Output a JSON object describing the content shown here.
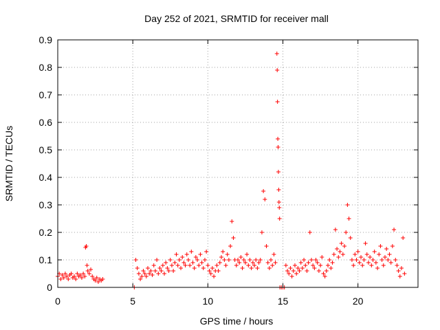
{
  "chart_data": {
    "type": "scatter",
    "title": "Day 252 of 2021, SRMTID for receiver mall",
    "xlabel": "GPS time / hours",
    "ylabel": "SRMTID / TECUs",
    "xlim": [
      0,
      24
    ],
    "ylim": [
      0,
      0.9
    ],
    "xticks": [
      0,
      5,
      10,
      15,
      20
    ],
    "yticks": [
      0,
      0.1,
      0.2,
      0.3,
      0.4,
      0.5,
      0.6,
      0.7,
      0.8,
      0.9
    ],
    "grid": true,
    "marker": "+",
    "color": "#ff0000",
    "series": [
      {
        "name": "SRMTID",
        "points": [
          [
            0.0,
            0.04
          ],
          [
            0.1,
            0.05
          ],
          [
            0.2,
            0.03
          ],
          [
            0.3,
            0.045
          ],
          [
            0.4,
            0.035
          ],
          [
            0.5,
            0.05
          ],
          [
            0.6,
            0.04
          ],
          [
            0.7,
            0.03
          ],
          [
            0.8,
            0.045
          ],
          [
            0.9,
            0.05
          ],
          [
            1.0,
            0.035
          ],
          [
            1.1,
            0.04
          ],
          [
            1.2,
            0.03
          ],
          [
            1.3,
            0.05
          ],
          [
            1.4,
            0.04
          ],
          [
            1.5,
            0.045
          ],
          [
            1.6,
            0.035
          ],
          [
            1.7,
            0.05
          ],
          [
            1.8,
            0.04
          ],
          [
            1.85,
            0.145
          ],
          [
            1.9,
            0.15
          ],
          [
            1.95,
            0.08
          ],
          [
            2.0,
            0.06
          ],
          [
            2.1,
            0.05
          ],
          [
            2.2,
            0.065
          ],
          [
            2.3,
            0.04
          ],
          [
            2.4,
            0.03
          ],
          [
            2.5,
            0.025
          ],
          [
            2.6,
            0.035
          ],
          [
            2.7,
            0.02
          ],
          [
            2.8,
            0.03
          ],
          [
            2.9,
            0.025
          ],
          [
            3.0,
            0.03
          ],
          [
            5.1,
            0.0
          ],
          [
            5.2,
            0.1
          ],
          [
            5.3,
            0.07
          ],
          [
            5.4,
            0.05
          ],
          [
            5.5,
            0.03
          ],
          [
            5.6,
            0.04
          ],
          [
            5.7,
            0.06
          ],
          [
            5.8,
            0.05
          ],
          [
            5.9,
            0.04
          ],
          [
            6.0,
            0.07
          ],
          [
            6.1,
            0.05
          ],
          [
            6.2,
            0.06
          ],
          [
            6.3,
            0.045
          ],
          [
            6.4,
            0.08
          ],
          [
            6.5,
            0.06
          ],
          [
            6.6,
            0.1
          ],
          [
            6.7,
            0.05
          ],
          [
            6.8,
            0.07
          ],
          [
            6.9,
            0.06
          ],
          [
            7.0,
            0.08
          ],
          [
            7.1,
            0.05
          ],
          [
            7.2,
            0.09
          ],
          [
            7.3,
            0.07
          ],
          [
            7.4,
            0.06
          ],
          [
            7.5,
            0.1
          ],
          [
            7.6,
            0.08
          ],
          [
            7.7,
            0.06
          ],
          [
            7.8,
            0.09
          ],
          [
            7.9,
            0.12
          ],
          [
            8.0,
            0.08
          ],
          [
            8.1,
            0.1
          ],
          [
            8.2,
            0.07
          ],
          [
            8.3,
            0.11
          ],
          [
            8.4,
            0.09
          ],
          [
            8.5,
            0.08
          ],
          [
            8.6,
            0.12
          ],
          [
            8.7,
            0.1
          ],
          [
            8.8,
            0.08
          ],
          [
            8.9,
            0.13
          ],
          [
            9.0,
            0.09
          ],
          [
            9.1,
            0.07
          ],
          [
            9.2,
            0.11
          ],
          [
            9.3,
            0.1
          ],
          [
            9.4,
            0.08
          ],
          [
            9.5,
            0.12
          ],
          [
            9.6,
            0.09
          ],
          [
            9.7,
            0.07
          ],
          [
            9.8,
            0.1
          ],
          [
            9.9,
            0.13
          ],
          [
            10.0,
            0.08
          ],
          [
            10.1,
            0.06
          ],
          [
            10.2,
            0.05
          ],
          [
            10.3,
            0.07
          ],
          [
            10.4,
            0.04
          ],
          [
            10.5,
            0.06
          ],
          [
            10.6,
            0.08
          ],
          [
            10.7,
            0.06
          ],
          [
            10.8,
            0.09
          ],
          [
            10.9,
            0.11
          ],
          [
            11.0,
            0.13
          ],
          [
            11.1,
            0.1
          ],
          [
            11.2,
            0.08
          ],
          [
            11.3,
            0.12
          ],
          [
            11.4,
            0.1
          ],
          [
            11.5,
            0.15
          ],
          [
            11.6,
            0.24
          ],
          [
            11.7,
            0.18
          ],
          [
            11.8,
            0.1
          ],
          [
            11.9,
            0.08
          ],
          [
            12.0,
            0.1
          ],
          [
            12.1,
            0.09
          ],
          [
            12.2,
            0.11
          ],
          [
            12.3,
            0.07
          ],
          [
            12.4,
            0.1
          ],
          [
            12.5,
            0.09
          ],
          [
            12.6,
            0.12
          ],
          [
            12.7,
            0.08
          ],
          [
            12.8,
            0.1
          ],
          [
            12.9,
            0.07
          ],
          [
            13.0,
            0.09
          ],
          [
            13.1,
            0.08
          ],
          [
            13.2,
            0.1
          ],
          [
            13.3,
            0.07
          ],
          [
            13.4,
            0.09
          ],
          [
            13.5,
            0.1
          ],
          [
            13.6,
            0.2
          ],
          [
            13.7,
            0.35
          ],
          [
            13.8,
            0.32
          ],
          [
            13.9,
            0.15
          ],
          [
            14.0,
            0.09
          ],
          [
            14.1,
            0.07
          ],
          [
            14.2,
            0.1
          ],
          [
            14.3,
            0.08
          ],
          [
            14.4,
            0.12
          ],
          [
            14.5,
            0.09
          ],
          [
            14.6,
            0.85
          ],
          [
            14.62,
            0.79
          ],
          [
            14.64,
            0.675
          ],
          [
            14.66,
            0.54
          ],
          [
            14.68,
            0.51
          ],
          [
            14.7,
            0.42
          ],
          [
            14.72,
            0.355
          ],
          [
            14.74,
            0.31
          ],
          [
            14.76,
            0.29
          ],
          [
            14.78,
            0.25
          ],
          [
            14.8,
            0.0
          ],
          [
            14.9,
            0.0
          ],
          [
            15.0,
            0.0
          ],
          [
            15.1,
            0.0
          ],
          [
            15.2,
            0.08
          ],
          [
            15.3,
            0.06
          ],
          [
            15.4,
            0.05
          ],
          [
            15.5,
            0.07
          ],
          [
            15.6,
            0.04
          ],
          [
            15.7,
            0.06
          ],
          [
            15.8,
            0.08
          ],
          [
            15.9,
            0.05
          ],
          [
            16.0,
            0.07
          ],
          [
            16.1,
            0.06
          ],
          [
            16.2,
            0.09
          ],
          [
            16.3,
            0.07
          ],
          [
            16.4,
            0.1
          ],
          [
            16.5,
            0.08
          ],
          [
            16.6,
            0.06
          ],
          [
            16.7,
            0.09
          ],
          [
            16.8,
            0.2
          ],
          [
            16.9,
            0.1
          ],
          [
            17.0,
            0.08
          ],
          [
            17.1,
            0.07
          ],
          [
            17.2,
            0.1
          ],
          [
            17.3,
            0.09
          ],
          [
            17.4,
            0.06
          ],
          [
            17.5,
            0.08
          ],
          [
            17.6,
            0.11
          ],
          [
            17.7,
            0.05
          ],
          [
            17.8,
            0.04
          ],
          [
            17.9,
            0.06
          ],
          [
            18.0,
            0.08
          ],
          [
            18.1,
            0.1
          ],
          [
            18.2,
            0.07
          ],
          [
            18.3,
            0.09
          ],
          [
            18.4,
            0.12
          ],
          [
            18.5,
            0.21
          ],
          [
            18.6,
            0.14
          ],
          [
            18.7,
            0.11
          ],
          [
            18.8,
            0.13
          ],
          [
            18.9,
            0.16
          ],
          [
            19.0,
            0.12
          ],
          [
            19.1,
            0.15
          ],
          [
            19.2,
            0.2
          ],
          [
            19.3,
            0.3
          ],
          [
            19.4,
            0.25
          ],
          [
            19.5,
            0.18
          ],
          [
            19.6,
            0.1
          ],
          [
            19.7,
            0.08
          ],
          [
            19.8,
            0.12
          ],
          [
            19.9,
            0.1
          ],
          [
            20.0,
            0.13
          ],
          [
            20.1,
            0.09
          ],
          [
            20.2,
            0.11
          ],
          [
            20.3,
            0.08
          ],
          [
            20.4,
            0.1
          ],
          [
            20.5,
            0.16
          ],
          [
            20.6,
            0.12
          ],
          [
            20.7,
            0.09
          ],
          [
            20.8,
            0.11
          ],
          [
            20.9,
            0.08
          ],
          [
            21.0,
            0.1
          ],
          [
            21.1,
            0.13
          ],
          [
            21.2,
            0.09
          ],
          [
            21.3,
            0.07
          ],
          [
            21.4,
            0.12
          ],
          [
            21.5,
            0.15
          ],
          [
            21.6,
            0.1
          ],
          [
            21.7,
            0.08
          ],
          [
            21.8,
            0.11
          ],
          [
            21.9,
            0.14
          ],
          [
            22.0,
            0.1
          ],
          [
            22.1,
            0.12
          ],
          [
            22.2,
            0.09
          ],
          [
            22.3,
            0.15
          ],
          [
            22.4,
            0.21
          ],
          [
            22.5,
            0.1
          ],
          [
            22.6,
            0.08
          ],
          [
            22.7,
            0.06
          ],
          [
            22.8,
            0.04
          ],
          [
            22.9,
            0.07
          ],
          [
            23.0,
            0.18
          ],
          [
            23.1,
            0.05
          ]
        ]
      }
    ]
  }
}
